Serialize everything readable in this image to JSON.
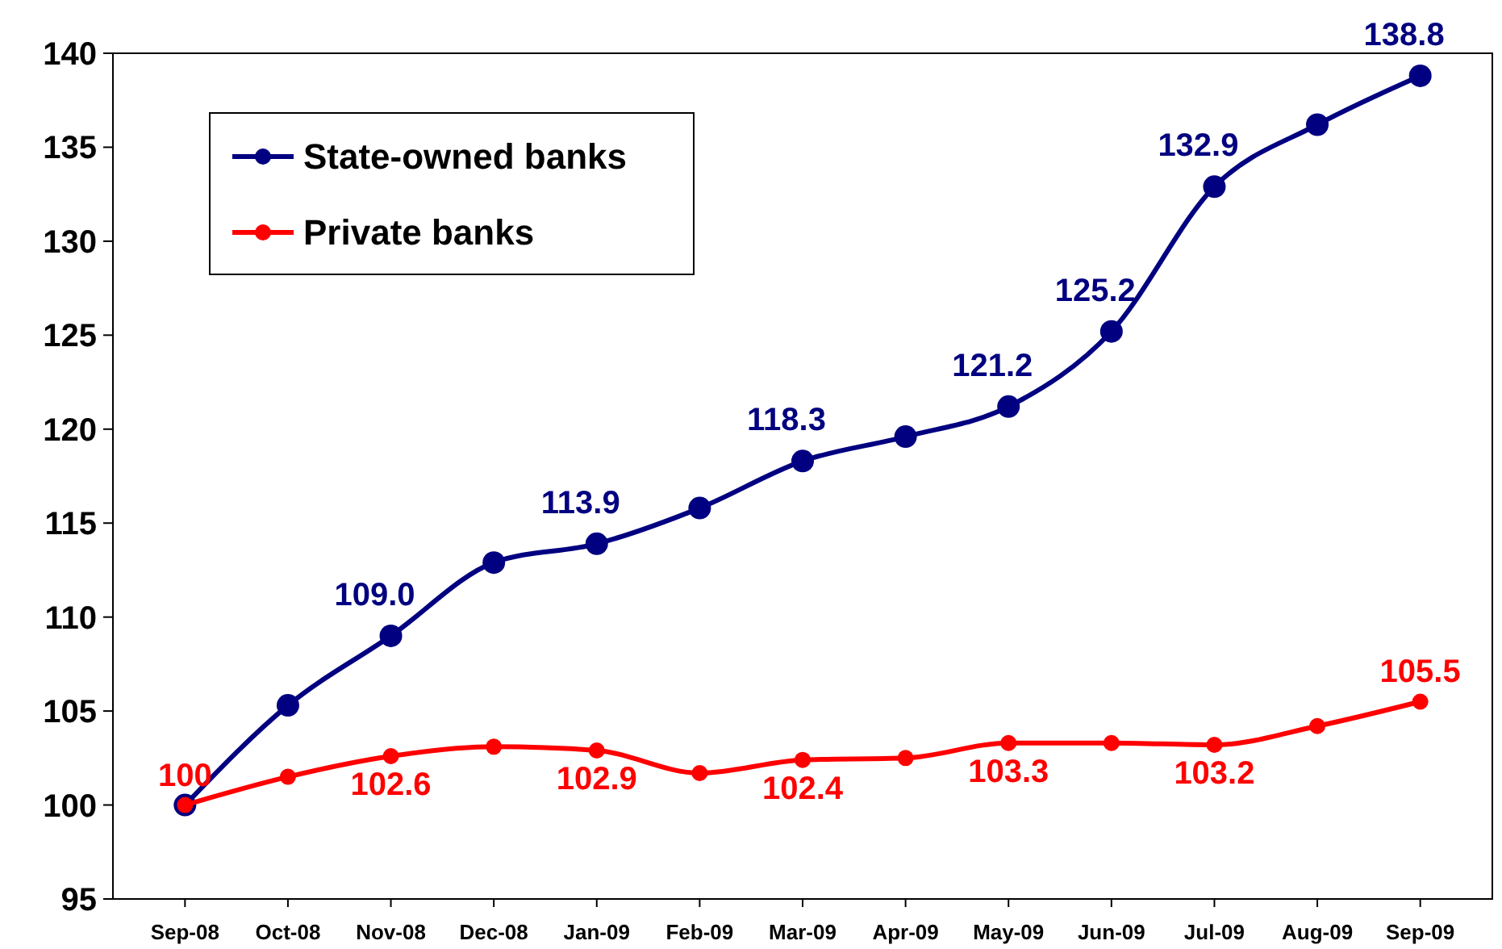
{
  "chart_data": {
    "type": "line",
    "categories": [
      "Sep-08",
      "Oct-08",
      "Nov-08",
      "Dec-08",
      "Jan-09",
      "Feb-09",
      "Mar-09",
      "Apr-09",
      "May-09",
      "Jun-09",
      "Jul-09",
      "Aug-09",
      "Sep-09"
    ],
    "series": [
      {
        "name": "State-owned banks",
        "color": "#000080",
        "values": [
          100,
          105.3,
          109.0,
          112.9,
          113.9,
          115.8,
          118.3,
          119.6,
          121.2,
          125.2,
          132.9,
          136.2,
          138.8
        ],
        "value_labels": [
          null,
          null,
          "109.0",
          null,
          "113.9",
          null,
          "118.3",
          null,
          "121.2",
          "125.2",
          "132.9",
          null,
          "138.8"
        ]
      },
      {
        "name": "Private banks",
        "color": "#ff0000",
        "values": [
          100,
          101.5,
          102.6,
          103.1,
          102.9,
          101.7,
          102.4,
          102.5,
          103.3,
          103.3,
          103.2,
          104.2,
          105.5
        ],
        "value_labels": [
          "100",
          null,
          "102.6",
          null,
          "102.9",
          null,
          "102.4",
          null,
          "103.3",
          null,
          "103.2",
          null,
          "105.5"
        ]
      }
    ],
    "ylim": [
      95,
      140
    ],
    "yticks": [
      95,
      100,
      105,
      110,
      115,
      120,
      125,
      130,
      135,
      140
    ],
    "grid": false,
    "legend": "top left",
    "marker": "circle",
    "line_style": "solid"
  }
}
